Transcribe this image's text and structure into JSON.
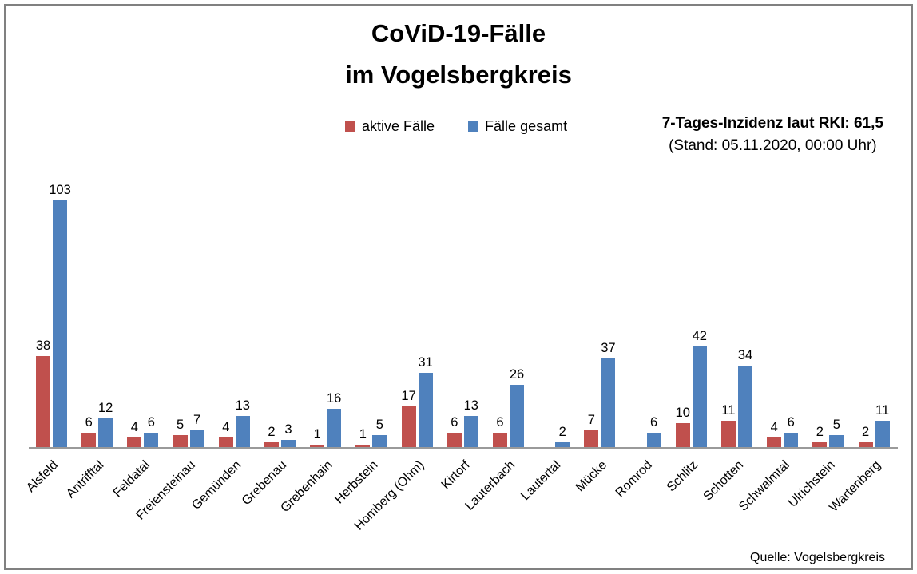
{
  "title": {
    "line1": "CoViD-19-Fälle",
    "line2": "im Vogelsbergkreis"
  },
  "legend": {
    "items": [
      {
        "label": "aktive Fälle",
        "color": "#C0504D"
      },
      {
        "label": "Fälle gesamt",
        "color": "#4F81BD"
      }
    ]
  },
  "annotation": {
    "line1": "7-Tages-Inzidenz laut RKI: 61,5",
    "line2": "(Stand: 05.11.2020, 00:00 Uhr)"
  },
  "source": "Quelle: Vogelsbergkreis",
  "chart_data": {
    "type": "bar",
    "title": "CoViD-19-Fälle im Vogelsbergkreis",
    "categories": [
      "Alsfeld",
      "Antrifftal",
      "Feldatal",
      "Freiensteinau",
      "Gemünden",
      "Grebenau",
      "Grebenhain",
      "Herbstein",
      "Homberg (Ohm)",
      "Kirtorf",
      "Lauterbach",
      "Lautertal",
      "Mücke",
      "Romrod",
      "Schlitz",
      "Schotten",
      "Schwalmtal",
      "Ulrichstein",
      "Wartenberg"
    ],
    "series": [
      {
        "name": "aktive Fälle",
        "color": "#C0504D",
        "values": [
          38,
          6,
          4,
          5,
          4,
          2,
          1,
          1,
          17,
          6,
          6,
          0,
          7,
          0,
          10,
          11,
          4,
          2,
          2
        ]
      },
      {
        "name": "Fälle gesamt",
        "color": "#4F81BD",
        "values": [
          103,
          12,
          6,
          7,
          13,
          3,
          16,
          5,
          31,
          13,
          26,
          2,
          37,
          6,
          42,
          34,
          6,
          5,
          11
        ]
      }
    ],
    "xlabel": "",
    "ylabel": "",
    "ylim": [
      0,
      110
    ],
    "grid": false,
    "legend_position": "top-center",
    "value_labels": true,
    "zero_value_labels_hidden": true,
    "x_tick_rotation_deg": 45
  }
}
